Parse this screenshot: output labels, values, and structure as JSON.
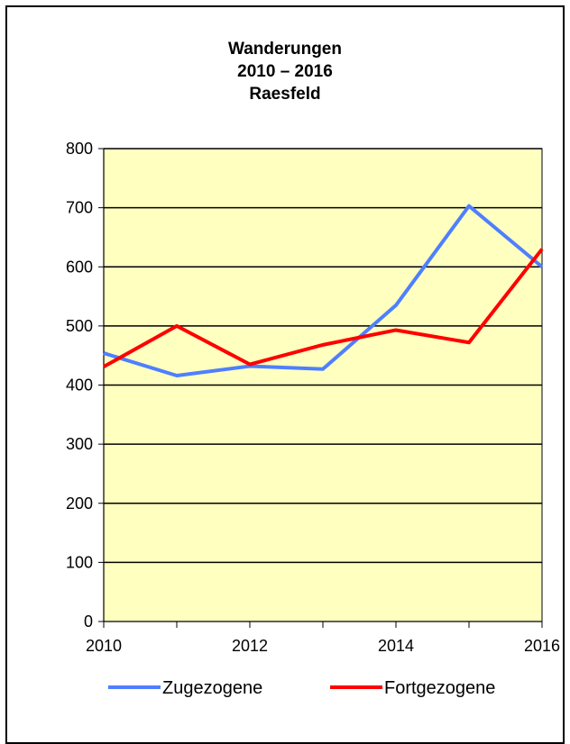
{
  "chart_data": {
    "type": "line",
    "title": [
      "Wanderungen",
      "2010 – 2016",
      "Raesfeld"
    ],
    "x": [
      2010,
      2011,
      2012,
      2013,
      2014,
      2015,
      2016
    ],
    "x_tick_labels": [
      "2010",
      "2012",
      "2014",
      "2016"
    ],
    "xlim": [
      2010,
      2016
    ],
    "ylim": [
      0,
      800
    ],
    "y_ticks": [
      0,
      100,
      200,
      300,
      400,
      500,
      600,
      700,
      800
    ],
    "grid": true,
    "legend_position": "bottom",
    "plot_background": "#FFFFC0",
    "series": [
      {
        "name": "Zugezogene",
        "color": "#4F7FFF",
        "values": [
          454,
          416,
          432,
          427,
          535,
          703,
          600
        ]
      },
      {
        "name": "Fortgezogene",
        "color": "#FF0000",
        "values": [
          431,
          500,
          435,
          468,
          493,
          472,
          630
        ]
      }
    ]
  }
}
